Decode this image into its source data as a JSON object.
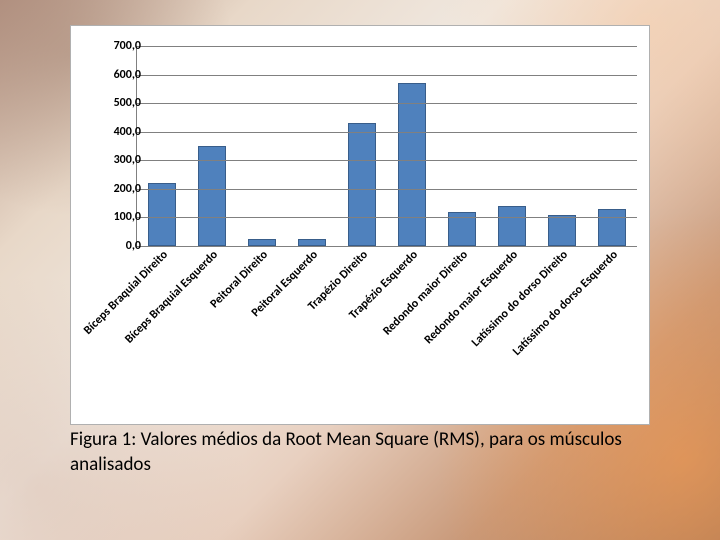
{
  "chart": {
    "type": "bar",
    "categories": [
      "Bíceps Braquial Direito",
      "Bíceps Braquial Esquerdo",
      "Peitoral Direito",
      "Peitoral Esquerdo",
      "Trapézio Direito",
      "Trapézio Esquerdo",
      "Redondo maior Direito",
      "Redondo maior Esquerdo",
      "Latíssimo do dorso Direito",
      "Latíssimo do dorso Esquerdo"
    ],
    "values": [
      220,
      350,
      25,
      25,
      430,
      570,
      120,
      140,
      110,
      130
    ],
    "bar_color": "#4f81bd",
    "bar_border_color": "#385d8a",
    "bar_width": 0.55,
    "ylim": [
      0,
      700
    ],
    "ytick_step": 100,
    "ytick_labels": [
      "0,0",
      "100,0",
      "200,0",
      "300,0",
      "400,0",
      "500,0",
      "600,0",
      "700,0"
    ],
    "grid_color": "#808080",
    "axis_color": "#808080",
    "background_color": "#ffffff",
    "card_border_color": "#b0b0b0",
    "tick_font_size": 12,
    "tick_font_weight": "bold",
    "xlabel_rotation_deg": -45
  },
  "caption": "Figura 1: Valores médios da Root Mean Square (RMS), para os músculos analisados"
}
